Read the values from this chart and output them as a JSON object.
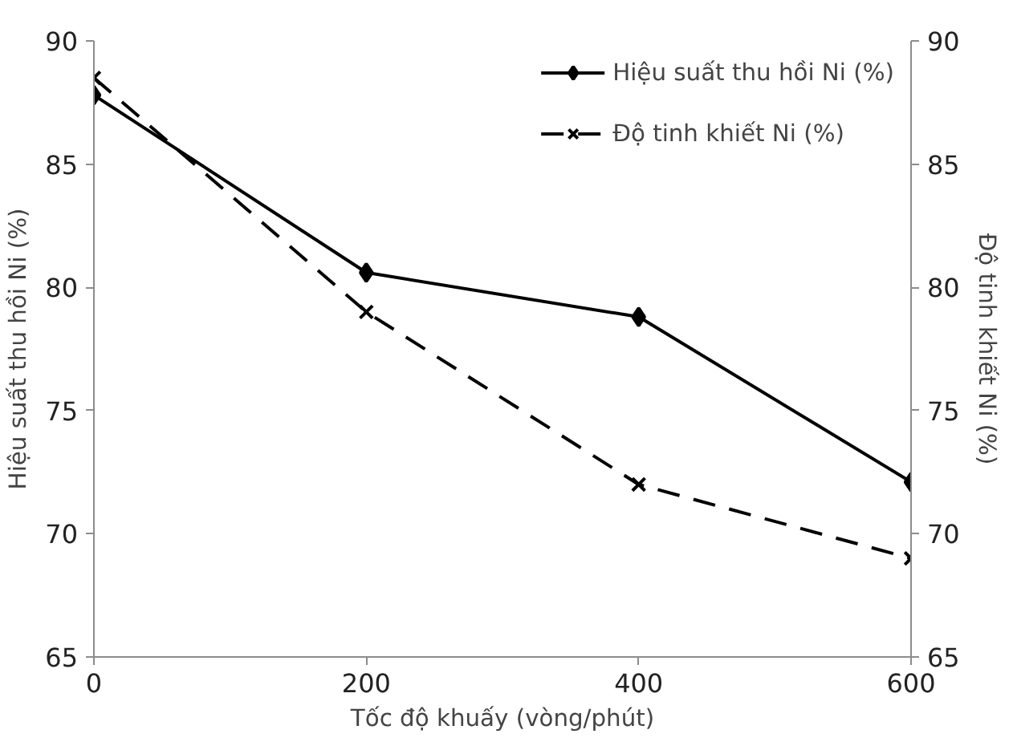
{
  "chart_data": {
    "type": "line",
    "xlabel": "Tốc độ khuấy (vòng/phút)",
    "ylabel": "Hiệu suất thu hồi Ni (%)",
    "y2label": "Độ tinh khiết Ni (%)",
    "x": [
      0,
      200,
      400,
      600
    ],
    "series": [
      {
        "name": "Hiệu suất thu hồi Ni (%)",
        "color": "#000000",
        "values": [
          87.8,
          80.6,
          78.8,
          72.1
        ],
        "marker": "diamond",
        "line_style": "solid"
      },
      {
        "name": "Độ tinh khiết Ni (%)",
        "color": "#000000",
        "values": [
          88.5,
          79,
          72,
          69
        ],
        "marker": "cross",
        "line_style": "dashed",
        "axis": "y2"
      }
    ],
    "xlim": [
      0,
      600
    ],
    "xticks": [
      0,
      200,
      400,
      600
    ],
    "ylim": [
      65,
      90
    ],
    "yticks": [
      65,
      70,
      75,
      80,
      85,
      90
    ],
    "y2lim": [
      65,
      90
    ],
    "y2ticks": [
      65,
      70,
      75,
      80,
      85,
      90
    ],
    "grid": false,
    "legend": "top right"
  }
}
